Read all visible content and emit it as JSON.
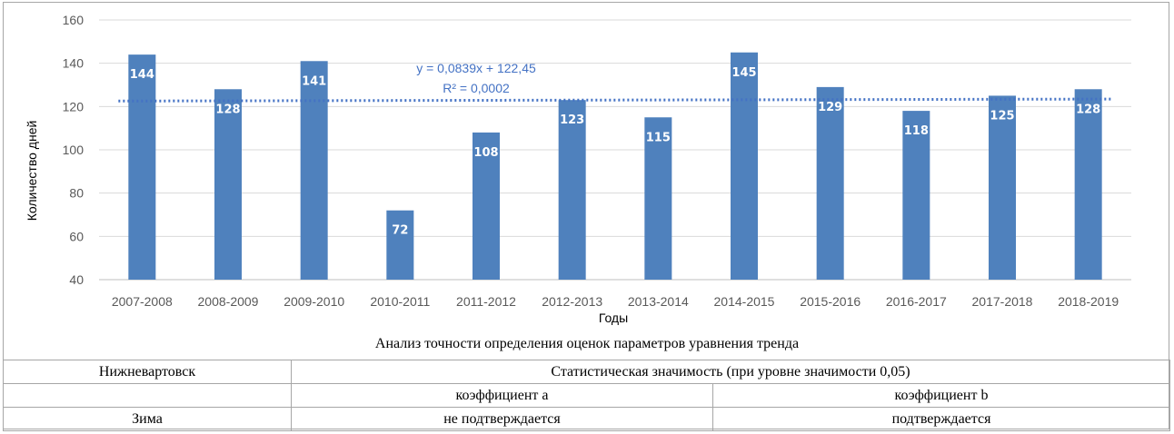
{
  "chart_data": {
    "type": "bar",
    "categories": [
      "2007-2008",
      "2008-2009",
      "2009-2010",
      "2010-2011",
      "2011-2012",
      "2012-2013",
      "2013-2014",
      "2014-2015",
      "2015-2016",
      "2016-2017",
      "2017-2018",
      "2018-2019"
    ],
    "values": [
      144,
      128,
      141,
      72,
      108,
      123,
      115,
      145,
      129,
      118,
      125,
      128
    ],
    "data_labels": [
      "144",
      "128",
      "141",
      "72",
      "108",
      "123",
      "115",
      "145",
      "129",
      "118",
      "125",
      "128"
    ],
    "xlabel": "Годы",
    "ylabel": "Количество дней",
    "ylim": [
      40,
      160
    ],
    "yticks": [
      40,
      60,
      80,
      100,
      120,
      140,
      160
    ],
    "ytick_labels": [
      "40",
      "60",
      "80",
      "100",
      "120",
      "140",
      "160"
    ],
    "grid": true,
    "bar_color": "#4f81bd",
    "trendline": {
      "type": "linear",
      "slope": 0.0839,
      "intercept": 122.45,
      "equation": "y = 0,0839x  + 122,45",
      "r2": "R² = 0,0002",
      "color": "#4472c4",
      "style": "dotted"
    }
  },
  "table": {
    "caption": "Анализ точности определения оценок параметров уравнения тренда",
    "city": "Нижневартовск",
    "significance_header": "Статистическая значимость (при уровне значимости 0,05)",
    "coef_a_header": "коэффициент a",
    "coef_b_header": "коэффициент b",
    "row_label": "Зима",
    "coef_a_value": "не подтверждается",
    "coef_b_value": "подтверждается"
  }
}
